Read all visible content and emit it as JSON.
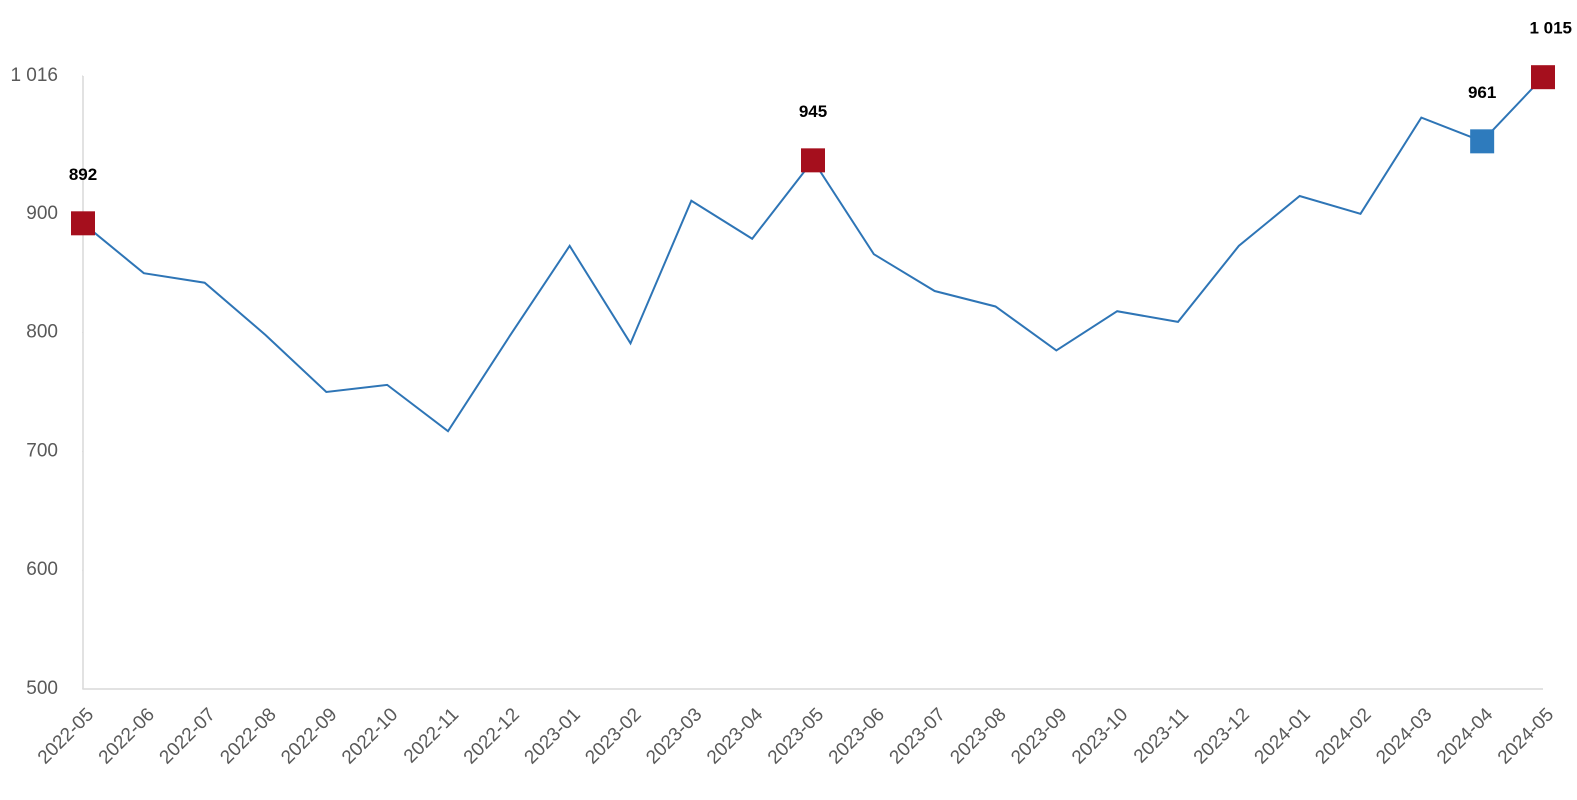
{
  "chart_data": {
    "type": "line",
    "categories": [
      "2022-05",
      "2022-06",
      "2022-07",
      "2022-08",
      "2022-09",
      "2022-10",
      "2022-11",
      "2022-12",
      "2023-01",
      "2023-02",
      "2023-03",
      "2023-04",
      "2023-05",
      "2023-06",
      "2023-07",
      "2023-08",
      "2023-09",
      "2023-10",
      "2023-11",
      "2023-12",
      "2024-01",
      "2024-02",
      "2024-03",
      "2024-04",
      "2024-05"
    ],
    "values": [
      892,
      850,
      842,
      798,
      750,
      756,
      717,
      796,
      873,
      791,
      911,
      879,
      945,
      866,
      835,
      822,
      785,
      818,
      809,
      873,
      915,
      900,
      981,
      961,
      1015
    ],
    "value_labels": [
      "892",
      null,
      null,
      null,
      null,
      null,
      null,
      null,
      null,
      null,
      null,
      null,
      "945",
      null,
      null,
      null,
      null,
      null,
      null,
      null,
      null,
      null,
      null,
      "961",
      "1 015"
    ],
    "marker_colors": [
      "#a50f1d",
      null,
      null,
      null,
      null,
      null,
      null,
      null,
      null,
      null,
      null,
      null,
      "#a50f1d",
      null,
      null,
      null,
      null,
      null,
      null,
      null,
      null,
      null,
      null,
      "#2e7bbd",
      "#a50f1d"
    ],
    "color": "#2e75b6",
    "ylim": [
      500,
      1016
    ],
    "yticks": [
      500,
      600,
      700,
      800,
      900,
      {
        "value": 1016,
        "label": "1 016"
      }
    ]
  }
}
